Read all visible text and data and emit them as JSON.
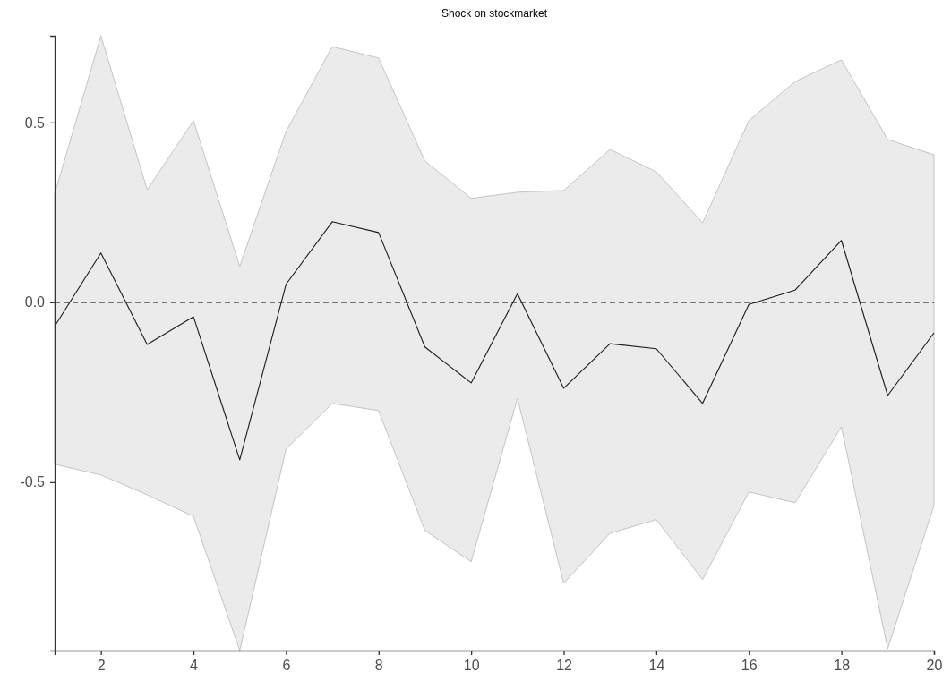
{
  "chart_data": {
    "type": "line",
    "title": "Shock on stockmarket",
    "x": [
      1,
      2,
      3,
      4,
      5,
      6,
      7,
      8,
      9,
      10,
      11,
      12,
      13,
      14,
      15,
      16,
      17,
      18,
      19,
      20
    ],
    "series": [
      {
        "color": "#1a1a1a",
        "values": [
          -0.067,
          0.137,
          -0.117,
          -0.04,
          -0.438,
          0.05,
          0.224,
          0.194,
          -0.124,
          -0.224,
          0.024,
          -0.239,
          -0.115,
          -0.129,
          -0.281,
          -0.006,
          0.034,
          0.172,
          -0.259,
          -0.085
        ],
        "upper": [
          0.301,
          0.741,
          0.313,
          0.505,
          0.1,
          0.475,
          0.711,
          0.679,
          0.393,
          0.289,
          0.306,
          0.311,
          0.425,
          0.363,
          0.221,
          0.505,
          0.614,
          0.674,
          0.453,
          0.41
        ],
        "lower": [
          -0.45,
          -0.48,
          -0.535,
          -0.595,
          -0.968,
          -0.408,
          -0.281,
          -0.301,
          -0.634,
          -0.721,
          -0.267,
          -0.781,
          -0.642,
          -0.604,
          -0.771,
          -0.527,
          -0.557,
          -0.346,
          -0.963,
          -0.565
        ]
      }
    ],
    "xlim": [
      1,
      20
    ],
    "xticks": [
      2,
      4,
      6,
      8,
      10,
      12,
      14,
      16,
      18,
      20
    ],
    "ylim": [
      -0.968,
      0.741
    ],
    "yticks": [
      -0.5,
      {
        "value": 0,
        "label": "0.0"
      },
      0.5
    ],
    "ref_lines": [
      {
        "axis": "y",
        "value": 0,
        "color": "#000000",
        "line_style": "dashed"
      }
    ],
    "grid": false,
    "marker": "none",
    "line_style": "solid"
  }
}
